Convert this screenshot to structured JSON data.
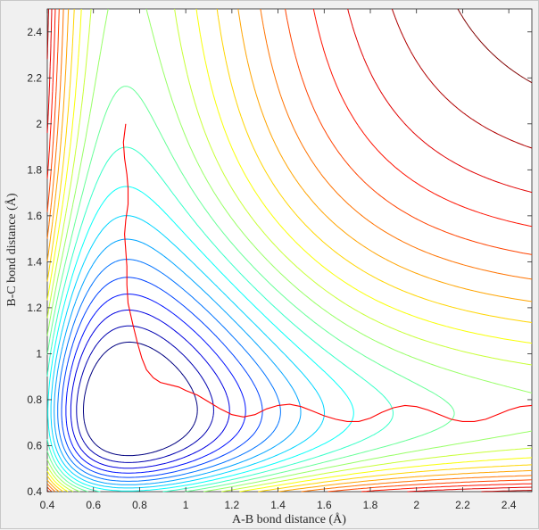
{
  "chart_data": {
    "type": "line",
    "title": "",
    "xlabel": "A-B bond distance (Å)",
    "ylabel": "B-C bond distance (Å)",
    "xlim": [
      0.4,
      2.5
    ],
    "ylim": [
      0.4,
      2.5
    ],
    "x_ticks": [
      0.4,
      0.6,
      0.8,
      1,
      1.2,
      1.4,
      1.6,
      1.8,
      2,
      2.2,
      2.4
    ],
    "y_ticks": [
      0.4,
      0.6,
      0.8,
      1,
      1.2,
      1.4,
      1.6,
      1.8,
      2,
      2.2,
      2.4
    ],
    "grid": false,
    "legend": "none",
    "contour_colormap": "jet",
    "contour_levels": 22,
    "surface_model": "LEPS-like collinear A + BC potential energy surface (contour plot)",
    "trajectory": {
      "color": "#ff0000",
      "points": [
        [
          0.74,
          2.0
        ],
        [
          0.73,
          1.92
        ],
        [
          0.735,
          1.85
        ],
        [
          0.745,
          1.78
        ],
        [
          0.75,
          1.72
        ],
        [
          0.75,
          1.65
        ],
        [
          0.74,
          1.58
        ],
        [
          0.735,
          1.52
        ],
        [
          0.74,
          1.45
        ],
        [
          0.745,
          1.38
        ],
        [
          0.745,
          1.3
        ],
        [
          0.75,
          1.22
        ],
        [
          0.77,
          1.13
        ],
        [
          0.79,
          1.05
        ],
        [
          0.81,
          0.98
        ],
        [
          0.83,
          0.93
        ],
        [
          0.86,
          0.895
        ],
        [
          0.89,
          0.875
        ],
        [
          0.93,
          0.865
        ],
        [
          0.97,
          0.855
        ],
        [
          1.0,
          0.84
        ],
        [
          1.05,
          0.82
        ],
        [
          1.1,
          0.79
        ],
        [
          1.15,
          0.76
        ],
        [
          1.2,
          0.735
        ],
        [
          1.25,
          0.725
        ],
        [
          1.3,
          0.735
        ],
        [
          1.35,
          0.76
        ],
        [
          1.4,
          0.775
        ],
        [
          1.45,
          0.78
        ],
        [
          1.5,
          0.77
        ],
        [
          1.55,
          0.75
        ],
        [
          1.6,
          0.73
        ],
        [
          1.65,
          0.715
        ],
        [
          1.7,
          0.705
        ],
        [
          1.75,
          0.705
        ],
        [
          1.8,
          0.72
        ],
        [
          1.85,
          0.745
        ],
        [
          1.9,
          0.765
        ],
        [
          1.95,
          0.775
        ],
        [
          2.0,
          0.77
        ],
        [
          2.05,
          0.755
        ],
        [
          2.1,
          0.735
        ],
        [
          2.15,
          0.715
        ],
        [
          2.2,
          0.705
        ],
        [
          2.25,
          0.705
        ],
        [
          2.3,
          0.715
        ],
        [
          2.35,
          0.735
        ],
        [
          2.4,
          0.755
        ],
        [
          2.45,
          0.77
        ],
        [
          2.5,
          0.775
        ]
      ]
    }
  }
}
